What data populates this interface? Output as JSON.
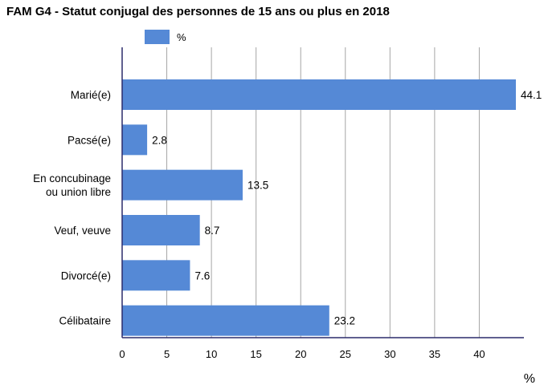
{
  "chart_data": {
    "type": "bar",
    "orientation": "horizontal",
    "title": "FAM G4 - Statut conjugal des personnes de 15 ans ou plus en 2018",
    "categories": [
      [
        "Marié(e)"
      ],
      [
        "Pacsé(e)"
      ],
      [
        "En concubinage",
        "ou union libre"
      ],
      [
        "Veuf, veuve"
      ],
      [
        "Divorcé(e)"
      ],
      [
        "Célibataire"
      ]
    ],
    "series": [
      {
        "name": "%",
        "values": [
          44.1,
          2.8,
          13.5,
          8.7,
          7.6,
          23.2
        ]
      }
    ],
    "xlabel": "%",
    "xlim": [
      0,
      45
    ],
    "xticks": [
      0,
      5,
      10,
      15,
      20,
      25,
      30,
      35,
      40
    ],
    "grid": "vertical",
    "legend": "top",
    "colors": {
      "bar": "#5589d6",
      "grid": "#a6a6a6",
      "axis": "#2b2b6b"
    }
  }
}
